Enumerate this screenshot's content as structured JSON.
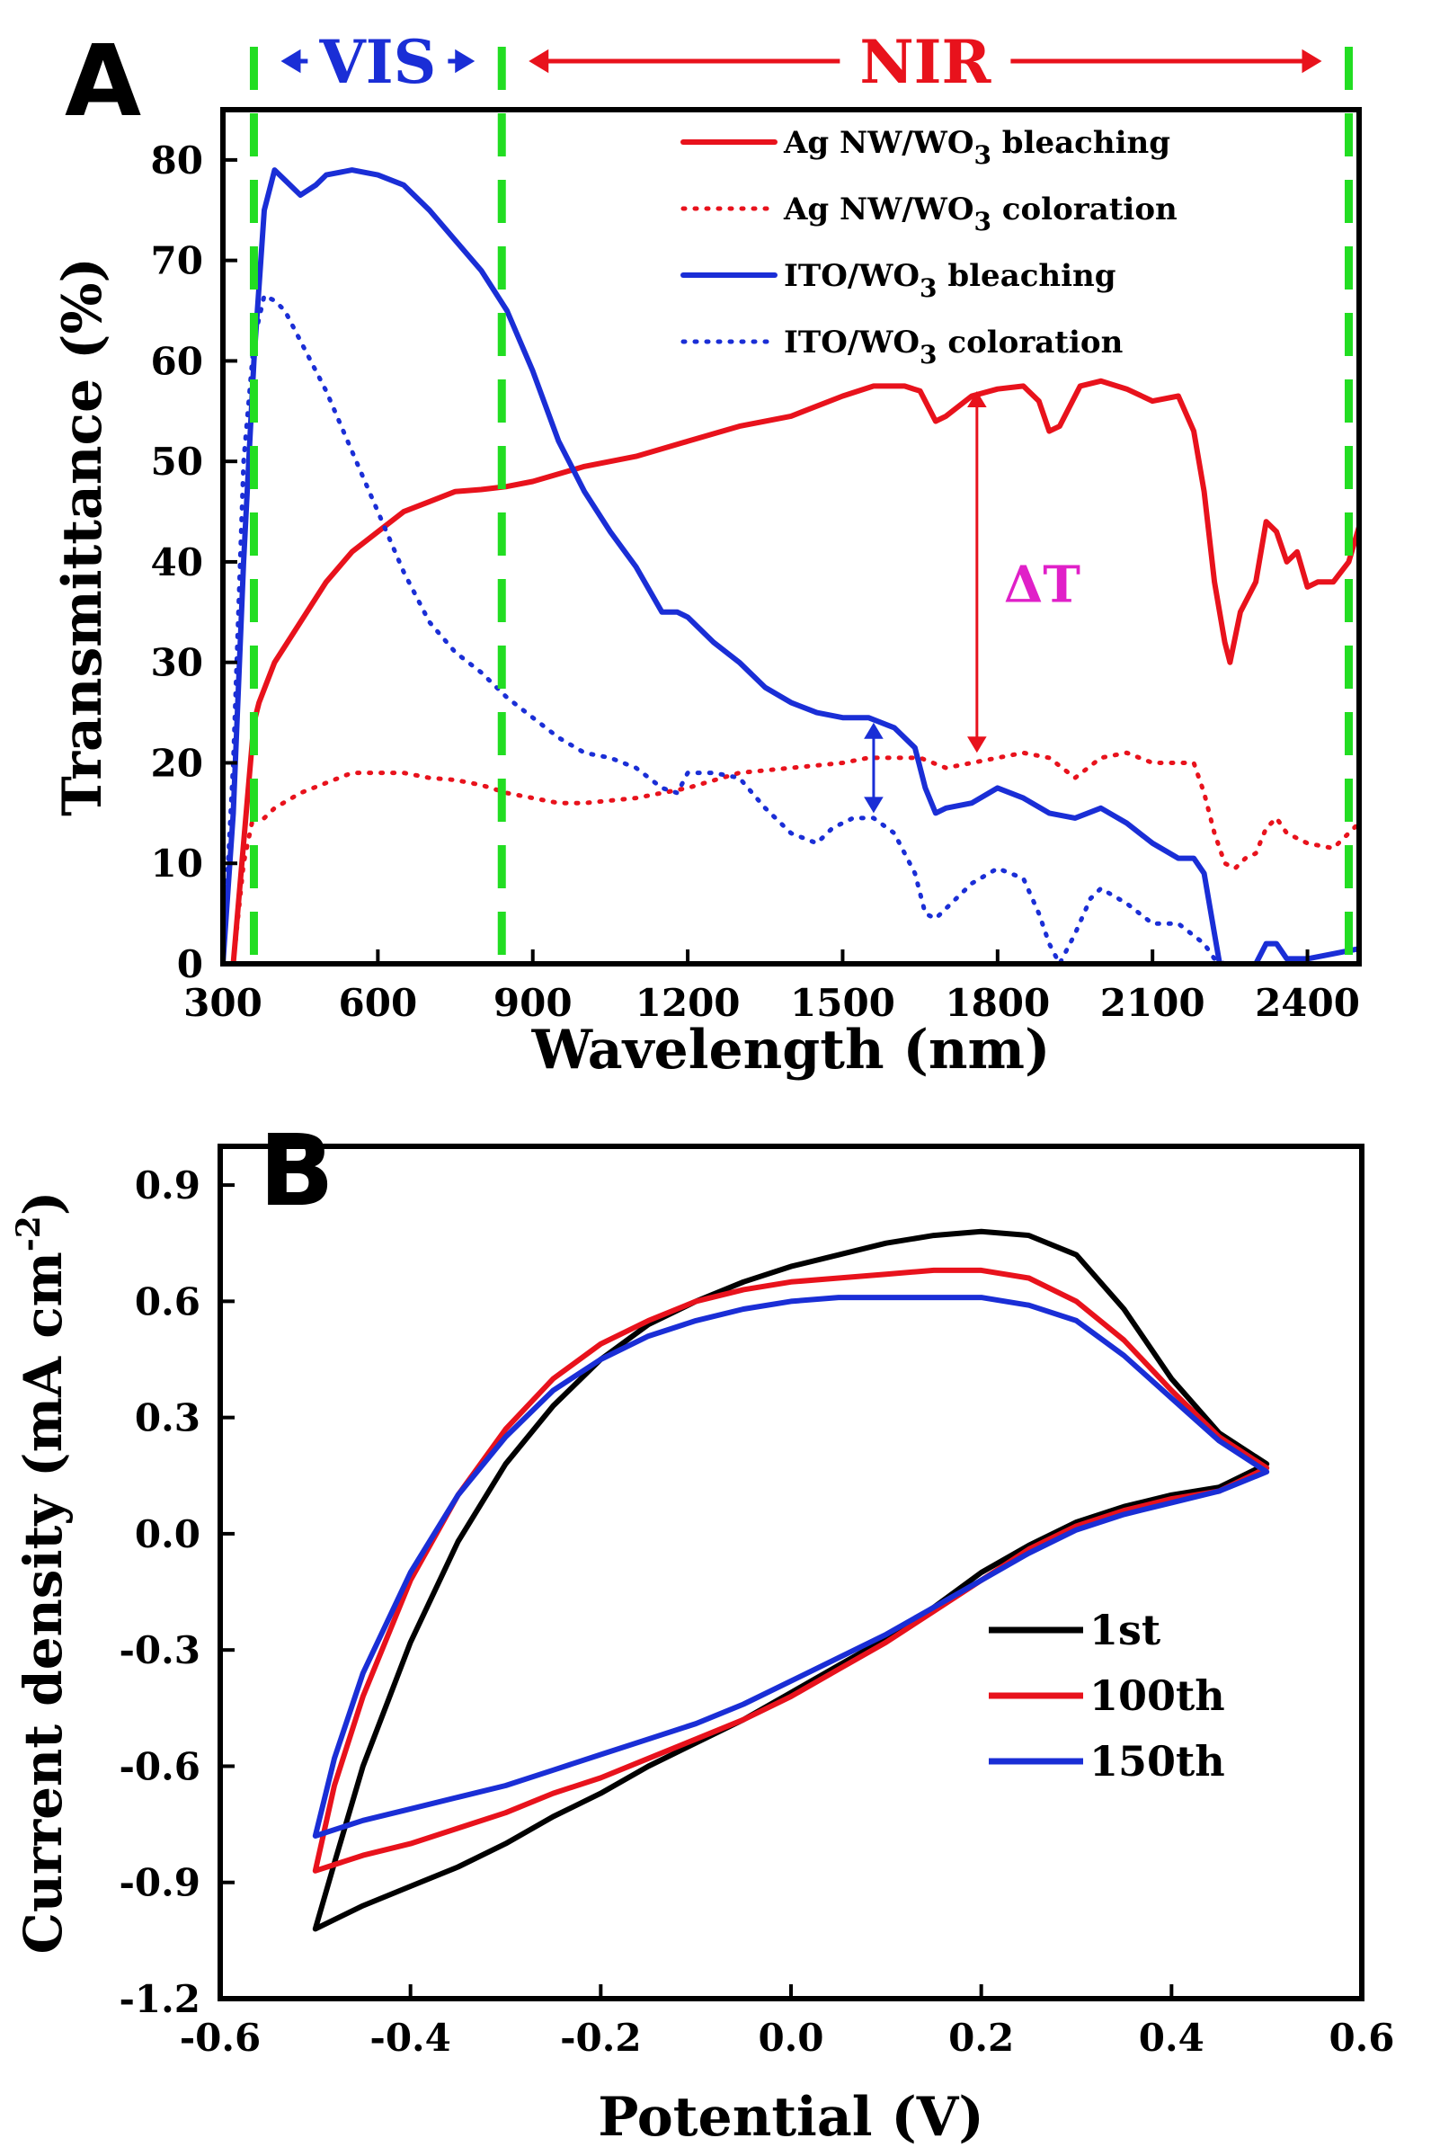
{
  "chart_data": [
    {
      "panel": "A",
      "type": "line",
      "xlabel": "Wavelength (nm)",
      "ylabel": "Transmittance (%)",
      "xlim": [
        300,
        2500
      ],
      "ylim": [
        0,
        85
      ],
      "xticks": [
        300,
        600,
        900,
        1200,
        1500,
        1800,
        2100,
        2400
      ],
      "yticks": [
        0,
        10,
        20,
        30,
        40,
        50,
        60,
        70,
        80
      ],
      "grid": false,
      "legend_position": "top-right",
      "region_markers": [
        360,
        840,
        2480
      ],
      "regions": [
        {
          "label": "VIS",
          "from": 360,
          "to": 840,
          "color": "#1a2ed6"
        },
        {
          "label": "NIR",
          "from": 840,
          "to": 2480,
          "color": "#e8121c"
        }
      ],
      "annotations": [
        {
          "label": "ΔT",
          "x": 1760,
          "y": 38,
          "color": "#e020c8"
        }
      ],
      "delta_arrows": [
        {
          "x": 1760,
          "y_from": 21,
          "y_to": 57,
          "color": "#e8121c"
        },
        {
          "x": 1560,
          "y_from": 15,
          "y_to": 24,
          "color": "#1a2ed6"
        }
      ],
      "series": [
        {
          "name": "Ag NW/WO",
          "sub": "3",
          "suffix": " bleaching",
          "color": "#e8121c",
          "dash": "solid",
          "x": [
            320,
            340,
            360,
            370,
            400,
            450,
            500,
            550,
            600,
            650,
            700,
            750,
            800,
            850,
            900,
            1000,
            1100,
            1200,
            1300,
            1400,
            1500,
            1560,
            1620,
            1650,
            1680,
            1700,
            1750,
            1800,
            1850,
            1880,
            1900,
            1920,
            1960,
            2000,
            2050,
            2100,
            2150,
            2180,
            2200,
            2220,
            2240,
            2250,
            2270,
            2300,
            2320,
            2340,
            2360,
            2380,
            2400,
            2420,
            2450,
            2480,
            2500
          ],
          "y": [
            0,
            12,
            24,
            26,
            30,
            34,
            38,
            41,
            43,
            45,
            46,
            47,
            47.2,
            47.5,
            48,
            49.5,
            50.5,
            52,
            53.5,
            54.5,
            56.5,
            57.5,
            57.5,
            57,
            54,
            54.5,
            56.5,
            57.2,
            57.5,
            56,
            53,
            53.5,
            57.5,
            58,
            57.2,
            56,
            56.5,
            53,
            47,
            38,
            32,
            30,
            35,
            38,
            44,
            43,
            40,
            41,
            37.5,
            38,
            38,
            40,
            43.5
          ]
        },
        {
          "name": "Ag NW/WO",
          "sub": "3",
          "suffix": " coloration",
          "color": "#e8121c",
          "dash": "dotted",
          "x": [
            320,
            340,
            360,
            380,
            400,
            450,
            500,
            550,
            600,
            650,
            700,
            750,
            800,
            850,
            900,
            950,
            1000,
            1100,
            1200,
            1300,
            1400,
            1500,
            1550,
            1600,
            1650,
            1700,
            1750,
            1800,
            1850,
            1900,
            1950,
            2000,
            2050,
            2100,
            2150,
            2180,
            2200,
            2220,
            2240,
            2260,
            2280,
            2300,
            2320,
            2340,
            2360,
            2400,
            2450,
            2500
          ],
          "y": [
            0,
            10,
            15,
            14.5,
            15.5,
            17,
            18,
            19,
            19,
            19,
            18.5,
            18.3,
            17.8,
            17,
            16.5,
            16,
            16,
            16.5,
            17.5,
            19,
            19.5,
            20,
            20.5,
            20.5,
            20.5,
            19.5,
            20,
            20.5,
            21,
            20.5,
            18.5,
            20.5,
            21,
            20,
            20,
            20,
            17,
            13,
            10,
            9.5,
            10.5,
            11,
            13.5,
            14.5,
            13,
            12,
            11.5,
            14
          ]
        },
        {
          "name": "ITO/WO",
          "sub": "3",
          "suffix": " bleaching",
          "color": "#1a2ed6",
          "dash": "solid",
          "x": [
            300,
            320,
            340,
            360,
            380,
            400,
            420,
            450,
            480,
            500,
            550,
            600,
            650,
            700,
            750,
            800,
            850,
            900,
            950,
            1000,
            1050,
            1100,
            1150,
            1180,
            1200,
            1250,
            1300,
            1350,
            1400,
            1450,
            1500,
            1550,
            1600,
            1640,
            1660,
            1680,
            1700,
            1750,
            1800,
            1850,
            1900,
            1950,
            2000,
            2050,
            2100,
            2150,
            2180,
            2200,
            2220,
            2230,
            2250,
            2300,
            2320,
            2340,
            2360,
            2400,
            2450,
            2500
          ],
          "y": [
            0,
            15,
            40,
            60,
            75,
            79,
            78,
            76.5,
            77.5,
            78.5,
            79,
            78.5,
            77.5,
            75,
            72,
            69,
            65,
            59,
            52,
            47,
            43,
            39.5,
            35,
            35,
            34.5,
            32,
            30,
            27.5,
            26,
            25,
            24.5,
            24.5,
            23.5,
            21.5,
            17.5,
            15,
            15.5,
            16,
            17.5,
            16.5,
            15,
            14.5,
            15.5,
            14,
            12,
            10.5,
            10.5,
            9,
            3,
            0,
            0,
            0,
            2,
            2,
            0.5,
            0.5,
            1,
            1.5
          ]
        },
        {
          "name": "ITO/WO",
          "sub": "3",
          "suffix": " coloration",
          "color": "#1a2ed6",
          "dash": "dotted",
          "x": [
            300,
            320,
            340,
            360,
            380,
            400,
            420,
            450,
            500,
            550,
            600,
            650,
            700,
            750,
            800,
            850,
            900,
            950,
            1000,
            1050,
            1100,
            1150,
            1180,
            1200,
            1250,
            1300,
            1350,
            1400,
            1450,
            1480,
            1520,
            1560,
            1600,
            1640,
            1660,
            1680,
            1700,
            1750,
            1800,
            1850,
            1880,
            1900,
            1920,
            1950,
            1980,
            2000,
            2050,
            2100,
            2150,
            2200,
            2220,
            2240,
            2260,
            2300,
            2350,
            2400,
            2450,
            2500
          ],
          "y": [
            0,
            20,
            50,
            62,
            66.5,
            66,
            65,
            62,
            57,
            51,
            45,
            39,
            34,
            31,
            29,
            26.5,
            24.5,
            22.5,
            21,
            20.5,
            19.5,
            17.5,
            17,
            19,
            19,
            18.5,
            15.5,
            13,
            12,
            13.5,
            14.5,
            14.5,
            13,
            9,
            5,
            4.5,
            5.5,
            8,
            9.5,
            8.5,
            5,
            2,
            0,
            3,
            6.5,
            7.5,
            6,
            4,
            4,
            2,
            0.5,
            0,
            0,
            0,
            0,
            0,
            0,
            0
          ]
        }
      ]
    },
    {
      "panel": "B",
      "type": "line",
      "xlabel": "Potential (V)",
      "ylabel": "Current density (mA cm",
      "ylabel_sup": "-2",
      "ylabel_close": ")",
      "xlim": [
        -0.6,
        0.6
      ],
      "ylim": [
        -1.2,
        1.0
      ],
      "xticks": [
        -0.6,
        -0.4,
        -0.2,
        0.0,
        0.2,
        0.4,
        0.6
      ],
      "xtick_labels": [
        "-0.6",
        "-0.4",
        "-0.2",
        "0.0",
        "0.2",
        "0.4",
        "0.6"
      ],
      "yticks": [
        -1.2,
        -0.9,
        -0.6,
        -0.3,
        0.0,
        0.3,
        0.6,
        0.9
      ],
      "ytick_labels": [
        "-1.2",
        "-0.9",
        "-0.6",
        "-0.3",
        "0.0",
        "0.3",
        "0.6",
        "0.9"
      ],
      "grid": false,
      "legend_position": "bottom-right",
      "series": [
        {
          "name": "1st",
          "color": "#000000",
          "x": [
            -0.5,
            -0.48,
            -0.45,
            -0.4,
            -0.35,
            -0.3,
            -0.25,
            -0.2,
            -0.15,
            -0.1,
            -0.05,
            0.0,
            0.05,
            0.1,
            0.15,
            0.2,
            0.25,
            0.3,
            0.35,
            0.4,
            0.45,
            0.5,
            0.45,
            0.4,
            0.35,
            0.3,
            0.25,
            0.2,
            0.15,
            0.1,
            0.05,
            0.0,
            -0.05,
            -0.1,
            -0.15,
            -0.2,
            -0.25,
            -0.3,
            -0.35,
            -0.4,
            -0.45,
            -0.5
          ],
          "y": [
            -1.02,
            -0.85,
            -0.6,
            -0.28,
            -0.02,
            0.18,
            0.33,
            0.45,
            0.54,
            0.6,
            0.65,
            0.69,
            0.72,
            0.75,
            0.77,
            0.78,
            0.77,
            0.72,
            0.58,
            0.4,
            0.26,
            0.18,
            0.12,
            0.1,
            0.07,
            0.03,
            -0.03,
            -0.1,
            -0.19,
            -0.27,
            -0.34,
            -0.41,
            -0.48,
            -0.54,
            -0.6,
            -0.67,
            -0.73,
            -0.8,
            -0.86,
            -0.91,
            -0.96,
            -1.02
          ]
        },
        {
          "name": "100th",
          "color": "#e8121c",
          "x": [
            -0.5,
            -0.48,
            -0.45,
            -0.4,
            -0.35,
            -0.3,
            -0.25,
            -0.2,
            -0.15,
            -0.1,
            -0.05,
            0.0,
            0.05,
            0.1,
            0.15,
            0.2,
            0.25,
            0.3,
            0.35,
            0.4,
            0.45,
            0.5,
            0.45,
            0.4,
            0.35,
            0.3,
            0.25,
            0.2,
            0.15,
            0.1,
            0.05,
            0.0,
            -0.05,
            -0.1,
            -0.15,
            -0.2,
            -0.25,
            -0.3,
            -0.35,
            -0.4,
            -0.45,
            -0.5
          ],
          "y": [
            -0.87,
            -0.65,
            -0.42,
            -0.12,
            0.1,
            0.27,
            0.4,
            0.49,
            0.55,
            0.6,
            0.63,
            0.65,
            0.66,
            0.67,
            0.68,
            0.68,
            0.66,
            0.6,
            0.5,
            0.37,
            0.25,
            0.17,
            0.11,
            0.09,
            0.06,
            0.02,
            -0.04,
            -0.12,
            -0.2,
            -0.28,
            -0.35,
            -0.42,
            -0.48,
            -0.53,
            -0.58,
            -0.63,
            -0.67,
            -0.72,
            -0.76,
            -0.8,
            -0.83,
            -0.87
          ]
        },
        {
          "name": "150th",
          "color": "#1a2ed6",
          "x": [
            -0.5,
            -0.48,
            -0.45,
            -0.4,
            -0.35,
            -0.3,
            -0.25,
            -0.2,
            -0.15,
            -0.1,
            -0.05,
            0.0,
            0.05,
            0.1,
            0.15,
            0.2,
            0.25,
            0.3,
            0.35,
            0.4,
            0.45,
            0.5,
            0.45,
            0.4,
            0.35,
            0.3,
            0.25,
            0.2,
            0.15,
            0.1,
            0.05,
            0.0,
            -0.05,
            -0.1,
            -0.15,
            -0.2,
            -0.25,
            -0.3,
            -0.35,
            -0.4,
            -0.45,
            -0.5
          ],
          "y": [
            -0.78,
            -0.58,
            -0.36,
            -0.1,
            0.1,
            0.25,
            0.37,
            0.45,
            0.51,
            0.55,
            0.58,
            0.6,
            0.61,
            0.61,
            0.61,
            0.61,
            0.59,
            0.55,
            0.46,
            0.35,
            0.24,
            0.16,
            0.11,
            0.08,
            0.05,
            0.01,
            -0.05,
            -0.12,
            -0.19,
            -0.26,
            -0.32,
            -0.38,
            -0.44,
            -0.49,
            -0.53,
            -0.57,
            -0.61,
            -0.65,
            -0.68,
            -0.71,
            -0.74,
            -0.78
          ]
        }
      ]
    }
  ],
  "panel_labels": {
    "a": "A",
    "b": "B"
  },
  "colors": {
    "marker": "#22dd22",
    "red": "#e8121c",
    "blue": "#1a2ed6",
    "magenta": "#e020c8"
  }
}
